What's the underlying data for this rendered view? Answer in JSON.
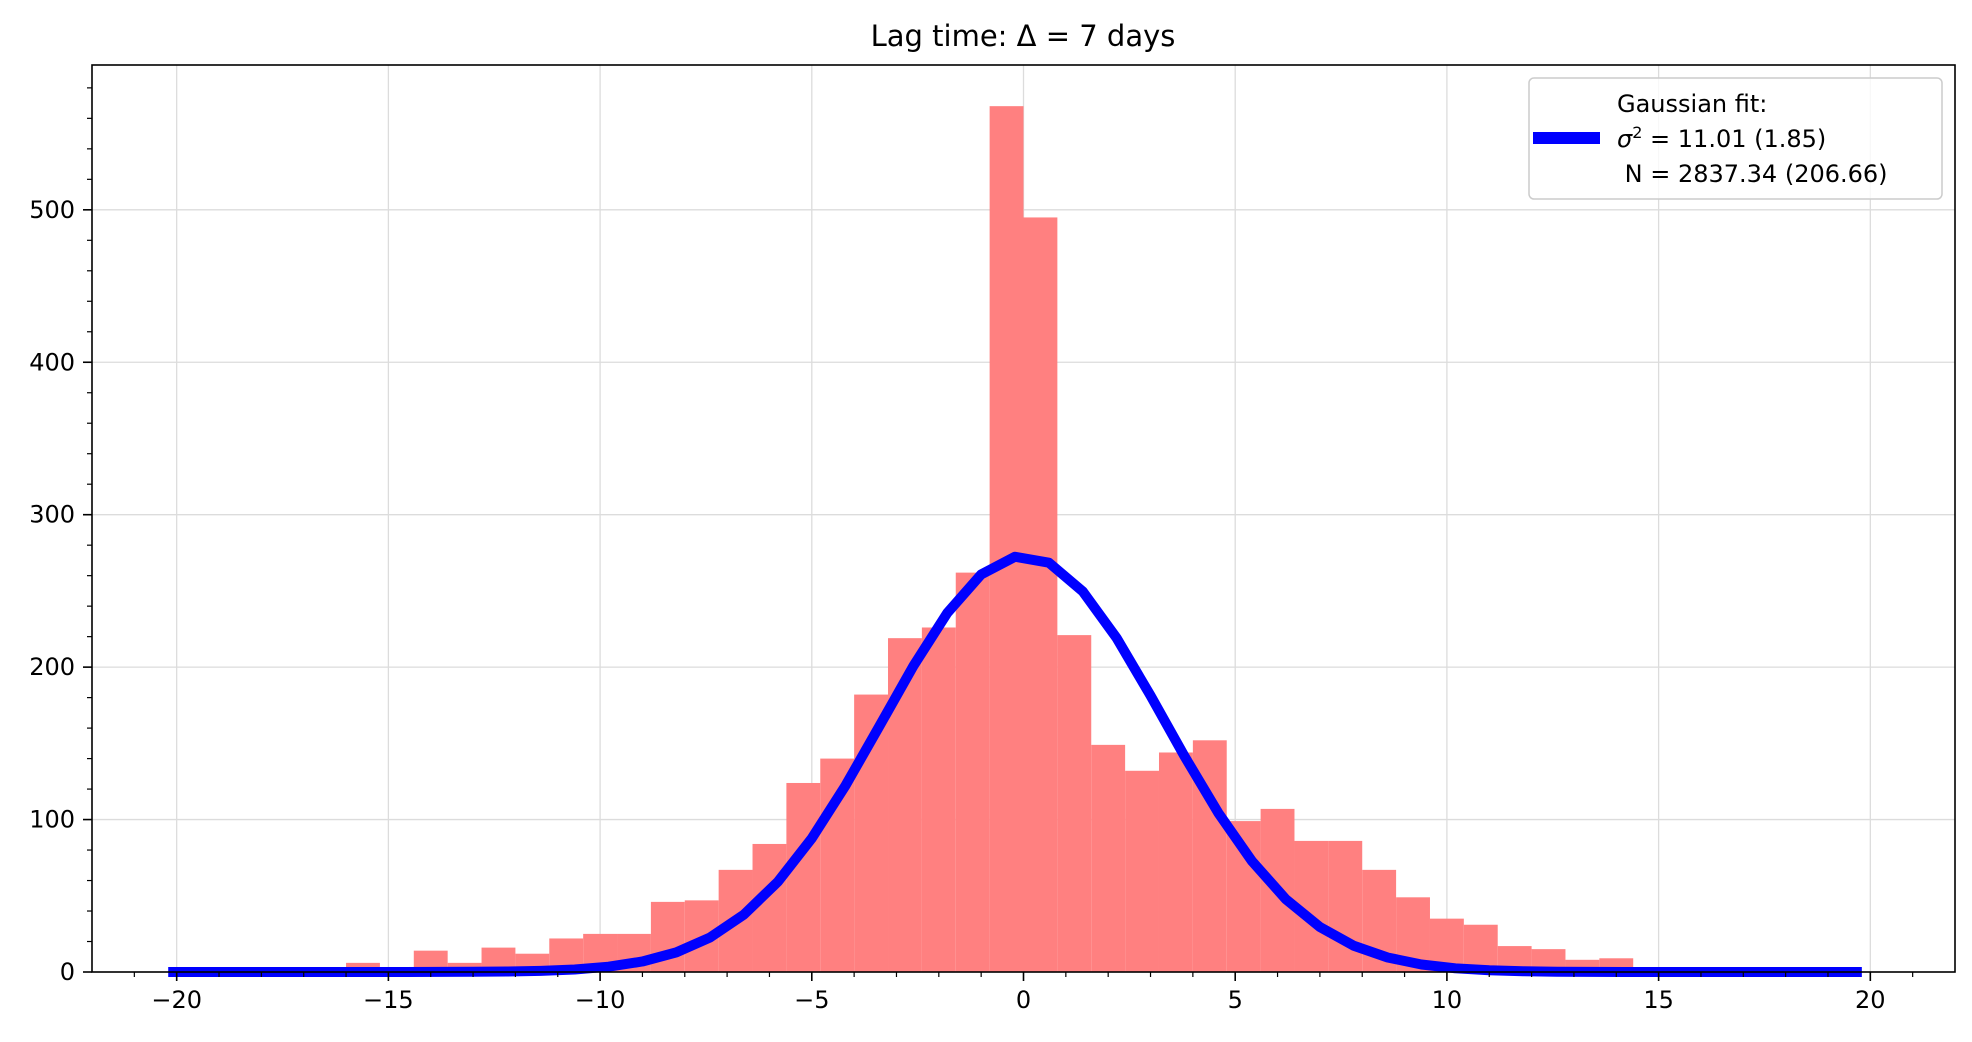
{
  "chart_data": {
    "type": "bar",
    "title": "Lag time: Δ = 7 days",
    "xlabel": "",
    "ylabel": "",
    "xlim": [
      -22,
      22
    ],
    "ylim": [
      0,
      595
    ],
    "grid": true,
    "legend_position": "top-right",
    "x_ticks": [
      -20,
      -15,
      -10,
      -5,
      0,
      5,
      10,
      15,
      20
    ],
    "x_tick_labels": [
      "−20",
      "−15",
      "−10",
      "−5",
      "0",
      "5",
      "10",
      "15",
      "20"
    ],
    "y_ticks": [
      0,
      100,
      200,
      300,
      400,
      500
    ],
    "y_tick_labels": [
      "0",
      "100",
      "200",
      "300",
      "400",
      "500"
    ],
    "histogram": {
      "name": "Lag time",
      "color": "#ff8080",
      "bin_width": 0.8,
      "bins": [
        {
          "x0": -16.0,
          "count": 6
        },
        {
          "x0": -15.2,
          "count": 0
        },
        {
          "x0": -14.4,
          "count": 14
        },
        {
          "x0": -13.6,
          "count": 6
        },
        {
          "x0": -12.8,
          "count": 16
        },
        {
          "x0": -12.0,
          "count": 12
        },
        {
          "x0": -11.2,
          "count": 22
        },
        {
          "x0": -10.4,
          "count": 25
        },
        {
          "x0": -9.6,
          "count": 25
        },
        {
          "x0": -8.8,
          "count": 46
        },
        {
          "x0": -8.0,
          "count": 47
        },
        {
          "x0": -7.2,
          "count": 67
        },
        {
          "x0": -6.4,
          "count": 84
        },
        {
          "x0": -5.6,
          "count": 124
        },
        {
          "x0": -4.8,
          "count": 140
        },
        {
          "x0": -4.0,
          "count": 182
        },
        {
          "x0": -3.2,
          "count": 219
        },
        {
          "x0": -2.4,
          "count": 226
        },
        {
          "x0": -1.6,
          "count": 262
        },
        {
          "x0": -0.8,
          "count": 568
        },
        {
          "x0": 0.0,
          "count": 495
        },
        {
          "x0": 0.8,
          "count": 221
        },
        {
          "x0": 1.6,
          "count": 149
        },
        {
          "x0": 2.4,
          "count": 132
        },
        {
          "x0": 3.2,
          "count": 144
        },
        {
          "x0": 4.0,
          "count": 152
        },
        {
          "x0": 4.8,
          "count": 99
        },
        {
          "x0": 5.6,
          "count": 107
        },
        {
          "x0": 6.4,
          "count": 86
        },
        {
          "x0": 7.2,
          "count": 86
        },
        {
          "x0": 8.0,
          "count": 67
        },
        {
          "x0": 8.8,
          "count": 49
        },
        {
          "x0": 9.6,
          "count": 35
        },
        {
          "x0": 10.4,
          "count": 31
        },
        {
          "x0": 11.2,
          "count": 17
        },
        {
          "x0": 12.0,
          "count": 15
        },
        {
          "x0": 12.8,
          "count": 8
        },
        {
          "x0": 13.6,
          "count": 9
        }
      ]
    },
    "fit": {
      "name": "Gaussian fit",
      "color": "#0000ff",
      "sigma2": 11.01,
      "N": 2837.34,
      "x_min": -20.2,
      "x_max": 20.2,
      "x_step": 0.8
    },
    "legend": {
      "line1": "Gaussian fit:",
      "line2_symbol": "σ",
      "line2_sup": "2",
      "line2_rest": " = 11.01 (1.85)",
      "line3": " N = 2837.34 (206.66)"
    }
  }
}
